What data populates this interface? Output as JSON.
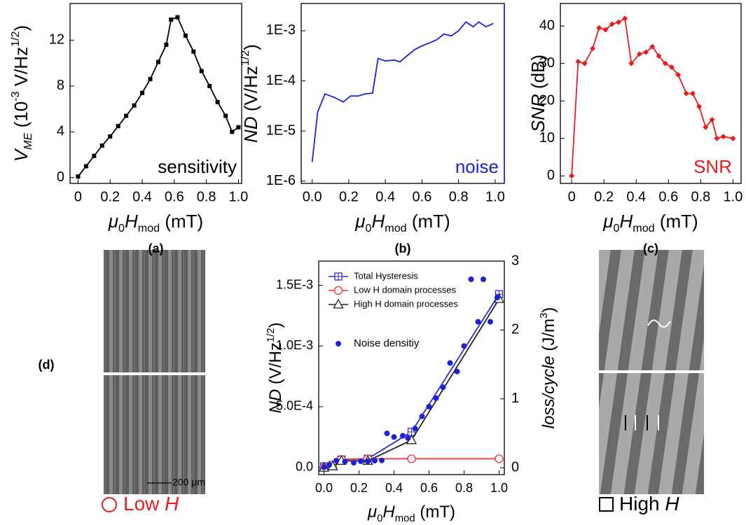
{
  "chart_data": [
    {
      "type": "line",
      "caption": "(a)",
      "xlabel": [
        {
          "text": "μ",
          "italic": true
        },
        {
          "text": "0",
          "sub": true
        },
        {
          "text": "H",
          "italic": true
        },
        {
          "text": "mod",
          "sub": true
        },
        {
          "text": " (mT)"
        }
      ],
      "ylabel": [
        {
          "text": "V",
          "italic": true
        },
        {
          "text": "ME",
          "sub": true,
          "italic": true
        },
        {
          "text": " (10"
        },
        {
          "text": "-3",
          "sup": true
        },
        {
          "text": " V/Hz"
        },
        {
          "text": "1/2",
          "sup": true
        },
        {
          "text": ")"
        }
      ],
      "annotation": {
        "text": "sensitivity",
        "color": "#000000"
      },
      "x": [
        0,
        0.05,
        0.1,
        0.15,
        0.2,
        0.25,
        0.3,
        0.35,
        0.4,
        0.45,
        0.5,
        0.55,
        0.58,
        0.62,
        0.67,
        0.72,
        0.77,
        0.82,
        0.87,
        0.92,
        0.96,
        1.0
      ],
      "series": [
        {
          "color": "#000000",
          "marker": "square",
          "values": [
            0.1,
            1.0,
            1.9,
            2.8,
            3.6,
            4.5,
            5.4,
            6.3,
            7.4,
            8.6,
            10.1,
            11.6,
            13.8,
            14.0,
            12.4,
            11.0,
            9.3,
            8.0,
            6.6,
            5.4,
            4.0,
            4.4
          ]
        }
      ],
      "xlim": [
        -0.05,
        1.02
      ],
      "xticks": [
        0,
        0.2,
        0.4,
        0.6,
        0.8,
        {
          "value": 1.0,
          "label": "1.0"
        }
      ],
      "ylim": [
        -0.5,
        15.2
      ],
      "yticks": [
        0,
        4,
        8,
        12
      ]
    },
    {
      "type": "line",
      "caption": "(b)",
      "xlabel": [
        {
          "text": "μ",
          "italic": true
        },
        {
          "text": "0",
          "sub": true
        },
        {
          "text": "H",
          "italic": true
        },
        {
          "text": "mod",
          "sub": true
        },
        {
          "text": " (mT)"
        }
      ],
      "ylabel": [
        {
          "text": "ND",
          "italic": true
        },
        {
          "text": " (V/Hz"
        },
        {
          "text": "1/2",
          "sup": true
        },
        {
          "text": ")"
        }
      ],
      "annotation": {
        "text": "noise",
        "color": "#1f1fe0"
      },
      "right_spine_color": "#1f1fe0",
      "x": [
        0,
        0.03,
        0.07,
        0.12,
        0.17,
        0.21,
        0.25,
        0.29,
        0.33,
        0.36,
        0.4,
        0.45,
        0.48,
        0.52,
        0.56,
        0.6,
        0.64,
        0.68,
        0.72,
        0.76,
        0.8,
        0.84,
        0.88,
        0.91,
        0.95,
        0.99
      ],
      "series": [
        {
          "color": "#1f1fe0",
          "marker": "none",
          "values": [
            2.4e-06,
            2.4e-05,
            5.5e-05,
            4.7e-05,
            3.8e-05,
            5e-05,
            5e-05,
            5.5e-05,
            5.7e-05,
            0.00028,
            0.00025,
            0.00026,
            0.00024,
            0.00032,
            0.00042,
            0.0005,
            0.00057,
            0.00066,
            0.00086,
            0.00079,
            0.001,
            0.0015,
            0.0012,
            0.0015,
            0.0012,
            0.0014
          ]
        }
      ],
      "xlim": [
        -0.06,
        1.05
      ],
      "xticks": [
        {
          "value": 0,
          "label": "0.0"
        },
        0.2,
        0.4,
        0.6,
        0.8,
        {
          "value": 1.0,
          "label": "1.0"
        }
      ],
      "ylog": true,
      "ylim": [
        9e-07,
        0.0035
      ],
      "yticks": [
        {
          "value": 1e-06,
          "label": "1E-6"
        },
        {
          "value": 1e-05,
          "label": "1E-5"
        },
        {
          "value": 0.0001,
          "label": "1E-4"
        },
        {
          "value": 0.001,
          "label": "1E-3"
        }
      ]
    },
    {
      "type": "line",
      "caption": "(c)",
      "xlabel": [
        {
          "text": "μ",
          "italic": true
        },
        {
          "text": "0",
          "sub": true
        },
        {
          "text": "H",
          "italic": true
        },
        {
          "text": "mod",
          "sub": true
        },
        {
          "text": " (mT)"
        }
      ],
      "ylabel": [
        {
          "text": "SNR",
          "italic": true
        },
        {
          "text": " (dB)"
        }
      ],
      "annotation": {
        "text": "SNR",
        "color": "#e81c1c"
      },
      "x": [
        0,
        0.04,
        0.08,
        0.13,
        0.17,
        0.21,
        0.25,
        0.29,
        0.33,
        0.37,
        0.42,
        0.46,
        0.5,
        0.54,
        0.58,
        0.62,
        0.66,
        0.71,
        0.75,
        0.79,
        0.83,
        0.87,
        0.9,
        0.94,
        1.0
      ],
      "series": [
        {
          "color": "#e81c1c",
          "marker": "diamond",
          "values": [
            0,
            30.5,
            30,
            34,
            39.5,
            39,
            40.5,
            41,
            42,
            30,
            32.5,
            33,
            34.5,
            32,
            30,
            29,
            27,
            22,
            22,
            18.5,
            13,
            15,
            10,
            10.5,
            10
          ]
        }
      ],
      "xlim": [
        -0.07,
        1.05
      ],
      "xticks": [
        0,
        0.2,
        0.4,
        0.6,
        0.8,
        {
          "value": 1.0,
          "label": "1.0"
        }
      ],
      "ylim": [
        -2,
        46
      ],
      "yticks": [
        0,
        10,
        20,
        30,
        40
      ]
    },
    {
      "type": "line",
      "caption": "(d)",
      "xlabel": [
        {
          "text": "μ",
          "italic": true
        },
        {
          "text": "0",
          "sub": true
        },
        {
          "text": "H",
          "italic": true
        },
        {
          "text": "mod",
          "sub": true
        },
        {
          "text": " (mT)"
        }
      ],
      "ylabel": [
        {
          "text": "ND",
          "italic": true
        },
        {
          "text": " (V/Hz"
        },
        {
          "text": "1/2",
          "sup": true
        },
        {
          "text": ")"
        }
      ],
      "y2label": [
        {
          "text": "loss/cycle",
          "italic": true
        },
        {
          "text": " (J/m"
        },
        {
          "text": "3",
          "sup": true
        },
        {
          "text": ")"
        }
      ],
      "legend": "upper left",
      "series": [
        {
          "name": "Total Hysteresis",
          "color": "#2a2ad8",
          "marker": "square-cross",
          "axis": "y2",
          "x": [
            0,
            0.05,
            0.1,
            0.25,
            0.5,
            1.0
          ],
          "values": [
            0.02,
            0.04,
            0.12,
            0.13,
            0.52,
            2.52
          ]
        },
        {
          "name": "Low H domain processes",
          "color": "#f03030",
          "marker": "circle-open",
          "axis": "y2",
          "x": [
            0,
            0.05,
            0.1,
            0.25,
            0.5,
            1.0
          ],
          "values": [
            0,
            0.04,
            0.12,
            0.13,
            0.13,
            0.13
          ]
        },
        {
          "name": "High H domain processes",
          "color": "#222222",
          "marker": "triangle-open",
          "axis": "y2",
          "x": [
            0,
            0.05,
            0.1,
            0.25,
            0.5,
            1.0
          ],
          "values": [
            0,
            0.02,
            0.1,
            0.1,
            0.4,
            2.45
          ]
        },
        {
          "name": "Noise densitiy",
          "color": "#1f1fe0",
          "marker": "dot",
          "line": false,
          "x": [
            0,
            0.03,
            0.07,
            0.12,
            0.17,
            0.21,
            0.25,
            0.29,
            0.33,
            0.36,
            0.4,
            0.45,
            0.48,
            0.52,
            0.56,
            0.6,
            0.64,
            0.68,
            0.72,
            0.76,
            0.8,
            0.84,
            0.88,
            0.91,
            0.95,
            0.99
          ],
          "values": [
            0,
            2e-05,
            5.5e-05,
            4.7e-05,
            3.8e-05,
            5e-05,
            5e-05,
            5.5e-05,
            5.7e-05,
            0.00028,
            0.00025,
            0.00026,
            0.00024,
            0.00032,
            0.00042,
            0.0005,
            0.00057,
            0.00066,
            0.00086,
            0.00079,
            0.001,
            0.00155,
            0.0012,
            0.00155,
            0.0012,
            0.0014
          ]
        }
      ],
      "xlim": [
        -0.03,
        1.03
      ],
      "xticks": [
        {
          "value": 0,
          "label": "0.0"
        },
        0.2,
        0.4,
        0.6,
        0.8,
        {
          "value": 1.0,
          "label": "1.0"
        }
      ],
      "ylim": [
        -6e-05,
        0.0017
      ],
      "yticks": [
        {
          "value": 0,
          "label": "0.0"
        },
        {
          "value": 0.0005,
          "label": "5.0E-4"
        },
        {
          "value": 0.001,
          "label": "1.0E-3"
        },
        {
          "value": 0.0015,
          "label": "1.5E-3"
        }
      ],
      "y2lim": [
        -0.1,
        3.0
      ],
      "y2ticks": [
        0,
        1,
        2,
        3
      ]
    }
  ],
  "images": [
    {
      "caption": [
        {
          "text": "Low "
        },
        {
          "text": "H",
          "italic": true
        }
      ],
      "scale_bar": "200 μm"
    },
    {
      "caption": [
        {
          "text": "High "
        },
        {
          "text": "H",
          "italic": true
        }
      ]
    }
  ]
}
